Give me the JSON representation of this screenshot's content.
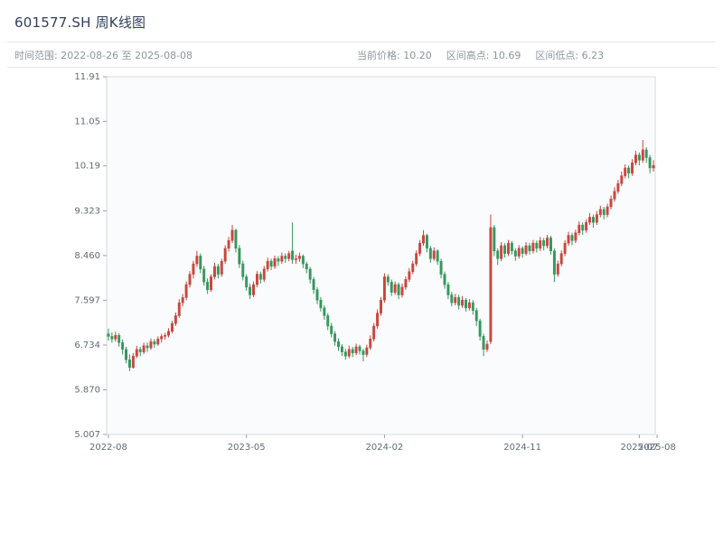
{
  "header": {
    "title": "601577.SH 周K线图",
    "time_range": "时间范围: 2022-08-26 至 2025-08-08",
    "current_price": "当前价格: 10.20",
    "range_high": "区间高点: 10.69",
    "range_low": "区间低点: 6.23"
  },
  "colors": {
    "up": "#c9463d",
    "down": "#35975d",
    "plot_bg": "#fafbfc",
    "plot_border": "#d7dade",
    "tick_text": "#5f6b76",
    "tick_mark": "#9aa0a8"
  },
  "chart_data": {
    "type": "candlestick",
    "title": "601577.SH 周K线图",
    "frequency": "weekly",
    "symbol": "601577.SH",
    "current_price": 10.2,
    "range_high": 10.69,
    "range_low": 6.23,
    "y_range": [
      5.007,
      11.91
    ],
    "y_ticks": [
      "11.91",
      "11.05",
      "10.19",
      "9.323",
      "8.460",
      "7.597",
      "6.734",
      "5.870",
      "5.007"
    ],
    "x_ticks": [
      {
        "label": "2022-08",
        "i": 0
      },
      {
        "label": "2023-05",
        "i": 39
      },
      {
        "label": "2024-02",
        "i": 78
      },
      {
        "label": "2024-11",
        "i": 117
      },
      {
        "label": "2025-07",
        "i": 150
      },
      {
        "label": "2025-08",
        "i": 155
      }
    ],
    "candles": [
      [
        6.95,
        7.05,
        6.82,
        6.9
      ],
      [
        6.9,
        6.98,
        6.78,
        6.85
      ],
      [
        6.85,
        6.99,
        6.8,
        6.92
      ],
      [
        6.92,
        6.96,
        6.7,
        6.78
      ],
      [
        6.78,
        6.84,
        6.55,
        6.65
      ],
      [
        6.65,
        6.7,
        6.38,
        6.45
      ],
      [
        6.45,
        6.55,
        6.23,
        6.3
      ],
      [
        6.3,
        6.58,
        6.28,
        6.52
      ],
      [
        6.52,
        6.72,
        6.48,
        6.65
      ],
      [
        6.65,
        6.7,
        6.52,
        6.6
      ],
      [
        6.6,
        6.78,
        6.56,
        6.72
      ],
      [
        6.72,
        6.78,
        6.6,
        6.68
      ],
      [
        6.68,
        6.86,
        6.64,
        6.8
      ],
      [
        6.8,
        6.85,
        6.68,
        6.75
      ],
      [
        6.75,
        6.9,
        6.72,
        6.85
      ],
      [
        6.85,
        6.95,
        6.78,
        6.9
      ],
      [
        6.9,
        6.97,
        6.84,
        6.92
      ],
      [
        6.92,
        7.06,
        6.88,
        7.0
      ],
      [
        7.0,
        7.2,
        6.96,
        7.15
      ],
      [
        7.15,
        7.36,
        7.1,
        7.3
      ],
      [
        7.3,
        7.62,
        7.26,
        7.55
      ],
      [
        7.55,
        7.72,
        7.48,
        7.65
      ],
      [
        7.65,
        7.96,
        7.6,
        7.9
      ],
      [
        7.9,
        8.16,
        7.84,
        8.1
      ],
      [
        8.1,
        8.36,
        8.02,
        8.3
      ],
      [
        8.3,
        8.55,
        8.24,
        8.45
      ],
      [
        8.45,
        8.5,
        8.12,
        8.2
      ],
      [
        8.2,
        8.26,
        7.88,
        7.95
      ],
      [
        7.95,
        8.02,
        7.72,
        7.8
      ],
      [
        7.8,
        8.1,
        7.76,
        8.05
      ],
      [
        8.05,
        8.32,
        8.0,
        8.25
      ],
      [
        8.25,
        8.3,
        8.02,
        8.1
      ],
      [
        8.1,
        8.4,
        8.05,
        8.35
      ],
      [
        8.35,
        8.66,
        8.3,
        8.6
      ],
      [
        8.6,
        8.82,
        8.54,
        8.75
      ],
      [
        8.75,
        9.05,
        8.7,
        8.95
      ],
      [
        8.95,
        8.98,
        8.52,
        8.6
      ],
      [
        8.6,
        8.66,
        8.22,
        8.3
      ],
      [
        8.3,
        8.36,
        7.98,
        8.05
      ],
      [
        8.05,
        8.1,
        7.78,
        7.85
      ],
      [
        7.85,
        7.92,
        7.62,
        7.7
      ],
      [
        7.7,
        7.96,
        7.66,
        7.9
      ],
      [
        7.9,
        8.16,
        7.85,
        8.1
      ],
      [
        8.1,
        8.15,
        7.92,
        8.0
      ],
      [
        8.0,
        8.26,
        7.95,
        8.2
      ],
      [
        8.2,
        8.42,
        8.15,
        8.35
      ],
      [
        8.35,
        8.4,
        8.18,
        8.25
      ],
      [
        8.25,
        8.46,
        8.2,
        8.4
      ],
      [
        8.4,
        8.45,
        8.26,
        8.35
      ],
      [
        8.35,
        8.52,
        8.3,
        8.45
      ],
      [
        8.45,
        8.5,
        8.32,
        8.4
      ],
      [
        8.4,
        8.55,
        8.35,
        8.5
      ],
      [
        8.55,
        9.1,
        8.3,
        8.38
      ],
      [
        8.38,
        8.48,
        8.3,
        8.4
      ],
      [
        8.4,
        8.52,
        8.34,
        8.45
      ],
      [
        8.45,
        8.48,
        8.22,
        8.3
      ],
      [
        8.3,
        8.34,
        8.12,
        8.2
      ],
      [
        8.2,
        8.24,
        7.92,
        8.0
      ],
      [
        8.0,
        8.05,
        7.72,
        7.8
      ],
      [
        7.8,
        7.85,
        7.52,
        7.6
      ],
      [
        7.6,
        7.66,
        7.38,
        7.45
      ],
      [
        7.45,
        7.5,
        7.22,
        7.3
      ],
      [
        7.3,
        7.35,
        7.02,
        7.1
      ],
      [
        7.1,
        7.16,
        6.88,
        6.95
      ],
      [
        6.95,
        7.0,
        6.72,
        6.8
      ],
      [
        6.8,
        6.86,
        6.62,
        6.7
      ],
      [
        6.7,
        6.75,
        6.52,
        6.6
      ],
      [
        6.6,
        6.66,
        6.45,
        6.52
      ],
      [
        6.52,
        6.72,
        6.48,
        6.65
      ],
      [
        6.65,
        6.7,
        6.5,
        6.58
      ],
      [
        6.58,
        6.76,
        6.54,
        6.7
      ],
      [
        6.7,
        6.74,
        6.55,
        6.62
      ],
      [
        6.62,
        6.66,
        6.42,
        6.55
      ],
      [
        6.55,
        6.74,
        6.5,
        6.68
      ],
      [
        6.68,
        6.92,
        6.64,
        6.85
      ],
      [
        6.85,
        7.16,
        6.8,
        7.1
      ],
      [
        7.1,
        7.42,
        7.05,
        7.35
      ],
      [
        7.35,
        7.66,
        7.3,
        7.6
      ],
      [
        7.6,
        8.12,
        7.55,
        8.05
      ],
      [
        8.05,
        8.1,
        7.88,
        7.95
      ],
      [
        7.95,
        8.0,
        7.68,
        7.75
      ],
      [
        7.75,
        7.96,
        7.7,
        7.9
      ],
      [
        7.9,
        7.94,
        7.62,
        7.7
      ],
      [
        7.7,
        7.92,
        7.65,
        7.85
      ],
      [
        7.85,
        8.06,
        7.8,
        8.0
      ],
      [
        8.0,
        8.22,
        7.95,
        8.15
      ],
      [
        8.15,
        8.36,
        8.1,
        8.3
      ],
      [
        8.3,
        8.56,
        8.25,
        8.5
      ],
      [
        8.5,
        8.76,
        8.45,
        8.7
      ],
      [
        8.7,
        8.95,
        8.65,
        8.85
      ],
      [
        8.85,
        8.88,
        8.52,
        8.6
      ],
      [
        8.6,
        8.65,
        8.32,
        8.4
      ],
      [
        8.4,
        8.62,
        8.36,
        8.55
      ],
      [
        8.55,
        8.58,
        8.28,
        8.35
      ],
      [
        8.35,
        8.4,
        8.02,
        8.1
      ],
      [
        8.1,
        8.15,
        7.82,
        7.9
      ],
      [
        7.9,
        7.95,
        7.62,
        7.7
      ],
      [
        7.7,
        7.76,
        7.48,
        7.55
      ],
      [
        7.55,
        7.72,
        7.5,
        7.65
      ],
      [
        7.65,
        7.7,
        7.42,
        7.5
      ],
      [
        7.5,
        7.68,
        7.45,
        7.6
      ],
      [
        7.6,
        7.64,
        7.38,
        7.45
      ],
      [
        7.45,
        7.62,
        7.4,
        7.55
      ],
      [
        7.55,
        7.6,
        7.32,
        7.4
      ],
      [
        7.4,
        7.45,
        7.1,
        7.2
      ],
      [
        7.2,
        7.24,
        6.82,
        6.9
      ],
      [
        6.9,
        6.95,
        6.52,
        6.65
      ],
      [
        6.65,
        6.82,
        6.6,
        6.75
      ],
      [
        6.8,
        9.25,
        6.75,
        9.0
      ],
      [
        9.0,
        9.05,
        8.45,
        8.55
      ],
      [
        8.55,
        8.6,
        8.28,
        8.4
      ],
      [
        8.4,
        8.72,
        8.35,
        8.65
      ],
      [
        8.65,
        8.7,
        8.42,
        8.5
      ],
      [
        8.5,
        8.76,
        8.45,
        8.7
      ],
      [
        8.7,
        8.74,
        8.48,
        8.55
      ],
      [
        8.55,
        8.6,
        8.36,
        8.45
      ],
      [
        8.45,
        8.66,
        8.4,
        8.6
      ],
      [
        8.6,
        8.64,
        8.42,
        8.5
      ],
      [
        8.5,
        8.72,
        8.46,
        8.65
      ],
      [
        8.65,
        8.7,
        8.48,
        8.55
      ],
      [
        8.55,
        8.76,
        8.5,
        8.7
      ],
      [
        8.7,
        8.75,
        8.52,
        8.6
      ],
      [
        8.6,
        8.82,
        8.55,
        8.75
      ],
      [
        8.75,
        8.8,
        8.56,
        8.65
      ],
      [
        8.65,
        8.86,
        8.6,
        8.8
      ],
      [
        8.8,
        8.84,
        8.48,
        8.55
      ],
      [
        8.55,
        8.6,
        7.95,
        8.1
      ],
      [
        8.1,
        8.36,
        8.05,
        8.3
      ],
      [
        8.3,
        8.56,
        8.25,
        8.5
      ],
      [
        8.5,
        8.76,
        8.45,
        8.7
      ],
      [
        8.7,
        8.92,
        8.65,
        8.85
      ],
      [
        8.85,
        8.9,
        8.66,
        8.75
      ],
      [
        8.75,
        8.96,
        8.7,
        8.9
      ],
      [
        8.9,
        9.12,
        8.85,
        9.05
      ],
      [
        9.05,
        9.1,
        8.86,
        8.95
      ],
      [
        8.95,
        9.16,
        8.9,
        9.1
      ],
      [
        9.1,
        9.28,
        9.05,
        9.2
      ],
      [
        9.2,
        9.25,
        9.0,
        9.1
      ],
      [
        9.1,
        9.32,
        9.05,
        9.25
      ],
      [
        9.25,
        9.42,
        9.2,
        9.35
      ],
      [
        9.35,
        9.4,
        9.16,
        9.25
      ],
      [
        9.25,
        9.46,
        9.2,
        9.4
      ],
      [
        9.4,
        9.62,
        9.35,
        9.55
      ],
      [
        9.55,
        9.78,
        9.5,
        9.7
      ],
      [
        9.7,
        9.92,
        9.65,
        9.85
      ],
      [
        9.85,
        10.08,
        9.8,
        10.0
      ],
      [
        10.0,
        10.22,
        9.95,
        10.15
      ],
      [
        10.15,
        10.2,
        9.95,
        10.05
      ],
      [
        10.05,
        10.32,
        10.0,
        10.25
      ],
      [
        10.25,
        10.48,
        10.2,
        10.4
      ],
      [
        10.4,
        10.45,
        10.2,
        10.3
      ],
      [
        10.3,
        10.69,
        10.25,
        10.5
      ],
      [
        10.5,
        10.55,
        10.25,
        10.35
      ],
      [
        10.35,
        10.4,
        10.05,
        10.15
      ],
      [
        10.15,
        10.3,
        10.08,
        10.2
      ]
    ]
  }
}
